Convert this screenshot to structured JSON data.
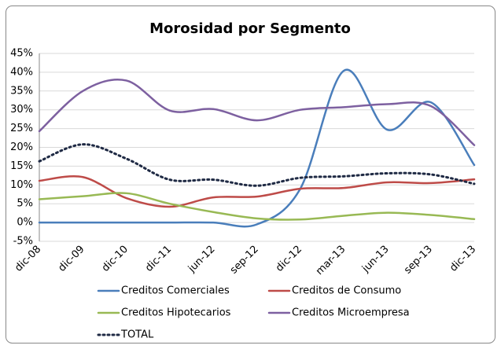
{
  "chart_data": {
    "type": "line",
    "title": "Morosidad por Segmento",
    "categories": [
      "dic-08",
      "dic-09",
      "dic-10",
      "dic-11",
      "jun-12",
      "sep-12",
      "dic-12",
      "mar-13",
      "jun-13",
      "sep-13",
      "dic-13"
    ],
    "series": [
      {
        "name": "Creditos Comerciales",
        "color": "#4a7ebb",
        "values": [
          0,
          0,
          0,
          0,
          0,
          -0.5,
          9,
          40.4,
          24.7,
          32,
          15.3
        ]
      },
      {
        "name": "Creditos de Consumo",
        "color": "#be4b48",
        "values": [
          11.1,
          12.1,
          6.5,
          4.2,
          6.7,
          6.9,
          9,
          9.2,
          10.7,
          10.5,
          11.5
        ]
      },
      {
        "name": "Creditos Hipotecarios",
        "color": "#98b954",
        "values": [
          6.2,
          7.0,
          7.8,
          5.0,
          2.8,
          1.1,
          0.8,
          1.8,
          2.6,
          2.0,
          0.9
        ]
      },
      {
        "name": "Creditos Microempresa",
        "color": "#7d60a0",
        "values": [
          24.3,
          35,
          37.8,
          29.8,
          30.2,
          27.2,
          30.0,
          30.7,
          31.5,
          31.0,
          20.6
        ]
      },
      {
        "name": "TOTAL",
        "color": "#1f2a44",
        "dashed": true,
        "values": [
          16.3,
          20.8,
          17.0,
          11.4,
          11.4,
          9.8,
          11.9,
          12.3,
          13.1,
          12.8,
          10.3
        ]
      }
    ],
    "ylim": [
      -5,
      45
    ],
    "yticks": [
      {
        "value": -5,
        "label": "-5%"
      },
      {
        "value": 0,
        "label": "0%"
      },
      {
        "value": 5,
        "label": "5%"
      },
      {
        "value": 10,
        "label": "10%"
      },
      {
        "value": 15,
        "label": "15%"
      },
      {
        "value": 20,
        "label": "20%"
      },
      {
        "value": 25,
        "label": "25%"
      },
      {
        "value": 30,
        "label": "30%"
      },
      {
        "value": 35,
        "label": "35%"
      },
      {
        "value": 40,
        "label": "40%"
      },
      {
        "value": 45,
        "label": "45%"
      }
    ],
    "grid": true,
    "smooth": true,
    "legend": "bottom"
  }
}
